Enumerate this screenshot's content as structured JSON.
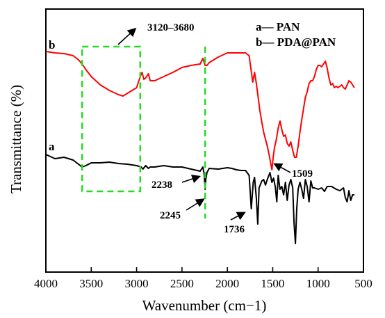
{
  "chart_data": {
    "type": "line",
    "xlabel": "Wavenumber (cm−1)",
    "ylabel": "Transmittance (%)",
    "xlim": [
      4000,
      500
    ],
    "x_ticks": [
      "4000",
      "3500",
      "3000",
      "2500",
      "2000",
      "1500",
      "1000",
      "500"
    ],
    "legend": {
      "placement": "top-right",
      "items": [
        "a— PAN",
        "b— PDA@PAN"
      ]
    },
    "series": [
      {
        "name": "a",
        "color": "#000000",
        "x": [
          4000,
          3900,
          3800,
          3700,
          3640,
          3600,
          3560,
          3500,
          3400,
          3300,
          3200,
          3100,
          3000,
          2950,
          2930,
          2900,
          2870,
          2850,
          2800,
          2700,
          2600,
          2500,
          2400,
          2300,
          2270,
          2255,
          2245,
          2238,
          2225,
          2200,
          2100,
          2000,
          1950,
          1900,
          1850,
          1800,
          1760,
          1736,
          1715,
          1700,
          1680,
          1665,
          1650,
          1620,
          1600,
          1580,
          1560,
          1530,
          1509,
          1490,
          1470,
          1455,
          1440,
          1420,
          1400,
          1380,
          1360,
          1340,
          1320,
          1300,
          1280,
          1265,
          1250,
          1235,
          1220,
          1200,
          1180,
          1160,
          1140,
          1120,
          1100,
          1080,
          1060,
          1040,
          1000,
          960,
          930,
          900,
          850,
          800,
          760,
          720,
          700,
          680,
          660,
          640,
          620,
          600
        ],
        "y": [
          222,
          228,
          226,
          230,
          236,
          240,
          238,
          234,
          234,
          233,
          235,
          236,
          238,
          240,
          243,
          238,
          242,
          240,
          240,
          238,
          240,
          240,
          243,
          246,
          240,
          250,
          272,
          258,
          248,
          242,
          243,
          241,
          242,
          244,
          245,
          245,
          252,
          300,
          262,
          255,
          285,
          322,
          270,
          260,
          258,
          266,
          258,
          248,
          262,
          256,
          270,
          290,
          252,
          272,
          268,
          280,
          262,
          288,
          266,
          258,
          270,
          320,
          350,
          300,
          272,
          262,
          272,
          285,
          258,
          268,
          290,
          260,
          270,
          270,
          272,
          270,
          275,
          268,
          268,
          272,
          274,
          270,
          284,
          290,
          274,
          288,
          280,
          280
        ]
      },
      {
        "name": "b",
        "color": "#ff0000",
        "x": [
          4000,
          3900,
          3800,
          3700,
          3640,
          3600,
          3560,
          3500,
          3400,
          3300,
          3200,
          3150,
          3100,
          3000,
          2960,
          2940,
          2920,
          2900,
          2870,
          2850,
          2800,
          2700,
          2600,
          2500,
          2400,
          2300,
          2270,
          2245,
          2225,
          2200,
          2100,
          2000,
          1950,
          1900,
          1850,
          1800,
          1760,
          1720,
          1700,
          1680,
          1660,
          1640,
          1620,
          1600,
          1580,
          1560,
          1540,
          1520,
          1509,
          1495,
          1480,
          1460,
          1440,
          1420,
          1400,
          1380,
          1360,
          1340,
          1320,
          1300,
          1280,
          1260,
          1240,
          1220,
          1200,
          1180,
          1160,
          1140,
          1120,
          1100,
          1080,
          1060,
          1040,
          1020,
          1000,
          980,
          960,
          940,
          920,
          900,
          880,
          860,
          840,
          820,
          800,
          780,
          760,
          740,
          720,
          700,
          680,
          660,
          640,
          620,
          600
        ],
        "y": [
          74,
          76,
          77,
          80,
          86,
          92,
          100,
          110,
          122,
          130,
          136,
          138,
          134,
          126,
          110,
          104,
          114,
          112,
          106,
          116,
          116,
          110,
          104,
          97,
          94,
          92,
          84,
          94,
          94,
          90,
          82,
          76,
          76,
          76,
          76,
          76,
          80,
          118,
          104,
          120,
          140,
          160,
          176,
          190,
          200,
          210,
          222,
          236,
          244,
          226,
          212,
          200,
          184,
          174,
          186,
          196,
          194,
          206,
          210,
          204,
          216,
          226,
          226,
          210,
          190,
          172,
          156,
          140,
          132,
          120,
          116,
          116,
          110,
          100,
          94,
          94,
          96,
          92,
          88,
          98,
          112,
          122,
          120,
          126,
          124,
          126,
          124,
          122,
          126,
          128,
          122,
          116,
          118,
          122,
          126
        ]
      }
    ],
    "annotations": [
      "3120–3680",
      "2238",
      "2245",
      "1736",
      "1509"
    ]
  }
}
